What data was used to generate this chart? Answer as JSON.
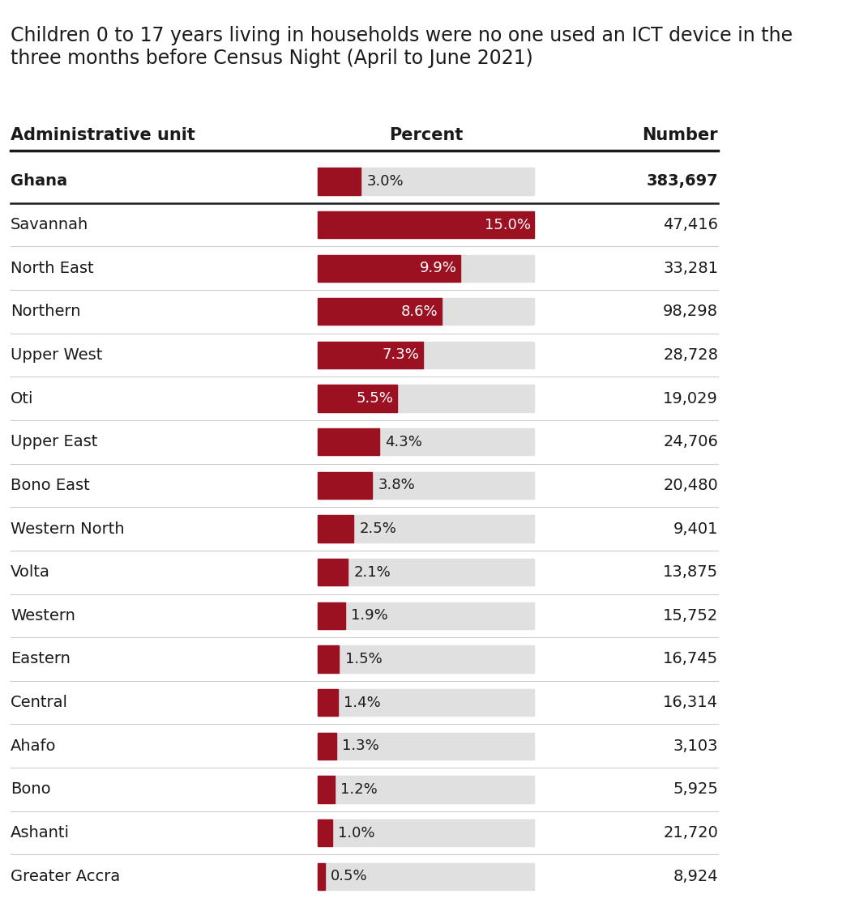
{
  "title": "Children 0 to 17 years living in households were no one used an ICT device in the\nthree months before Census Night (April to June 2021)",
  "col_header_admin": "Administrative unit",
  "col_header_percent": "Percent",
  "col_header_number": "Number",
  "regions": [
    {
      "name": "Ghana",
      "percent": 3.0,
      "number": "383,697",
      "bold": true
    },
    {
      "name": "Savannah",
      "percent": 15.0,
      "number": "47,416",
      "bold": false
    },
    {
      "name": "North East",
      "percent": 9.9,
      "number": "33,281",
      "bold": false
    },
    {
      "name": "Northern",
      "percent": 8.6,
      "number": "98,298",
      "bold": false
    },
    {
      "name": "Upper West",
      "percent": 7.3,
      "number": "28,728",
      "bold": false
    },
    {
      "name": "Oti",
      "percent": 5.5,
      "number": "19,029",
      "bold": false
    },
    {
      "name": "Upper East",
      "percent": 4.3,
      "number": "24,706",
      "bold": false
    },
    {
      "name": "Bono East",
      "percent": 3.8,
      "number": "20,480",
      "bold": false
    },
    {
      "name": "Western North",
      "percent": 2.5,
      "number": "9,401",
      "bold": false
    },
    {
      "name": "Volta",
      "percent": 2.1,
      "number": "13,875",
      "bold": false
    },
    {
      "name": "Western",
      "percent": 1.9,
      "number": "15,752",
      "bold": false
    },
    {
      "name": "Eastern",
      "percent": 1.5,
      "number": "16,745",
      "bold": false
    },
    {
      "name": "Central",
      "percent": 1.4,
      "number": "16,314",
      "bold": false
    },
    {
      "name": "Ahafo",
      "percent": 1.3,
      "number": "3,103",
      "bold": false
    },
    {
      "name": "Bono",
      "percent": 1.2,
      "number": "5,925",
      "bold": false
    },
    {
      "name": "Ashanti",
      "percent": 1.0,
      "number": "21,720",
      "bold": false
    },
    {
      "name": "Greater Accra",
      "percent": 0.5,
      "number": "8,924",
      "bold": false
    }
  ],
  "bar_color": "#9B1122",
  "bar_bg_color": "#E0E0E0",
  "bar_max_percent": 15.0,
  "bg_color": "#FFFFFF",
  "title_fontsize": 17,
  "header_fontsize": 15,
  "row_fontsize": 14,
  "thick_line_color": "#1a1a1a",
  "thin_line_color": "#CCCCCC"
}
